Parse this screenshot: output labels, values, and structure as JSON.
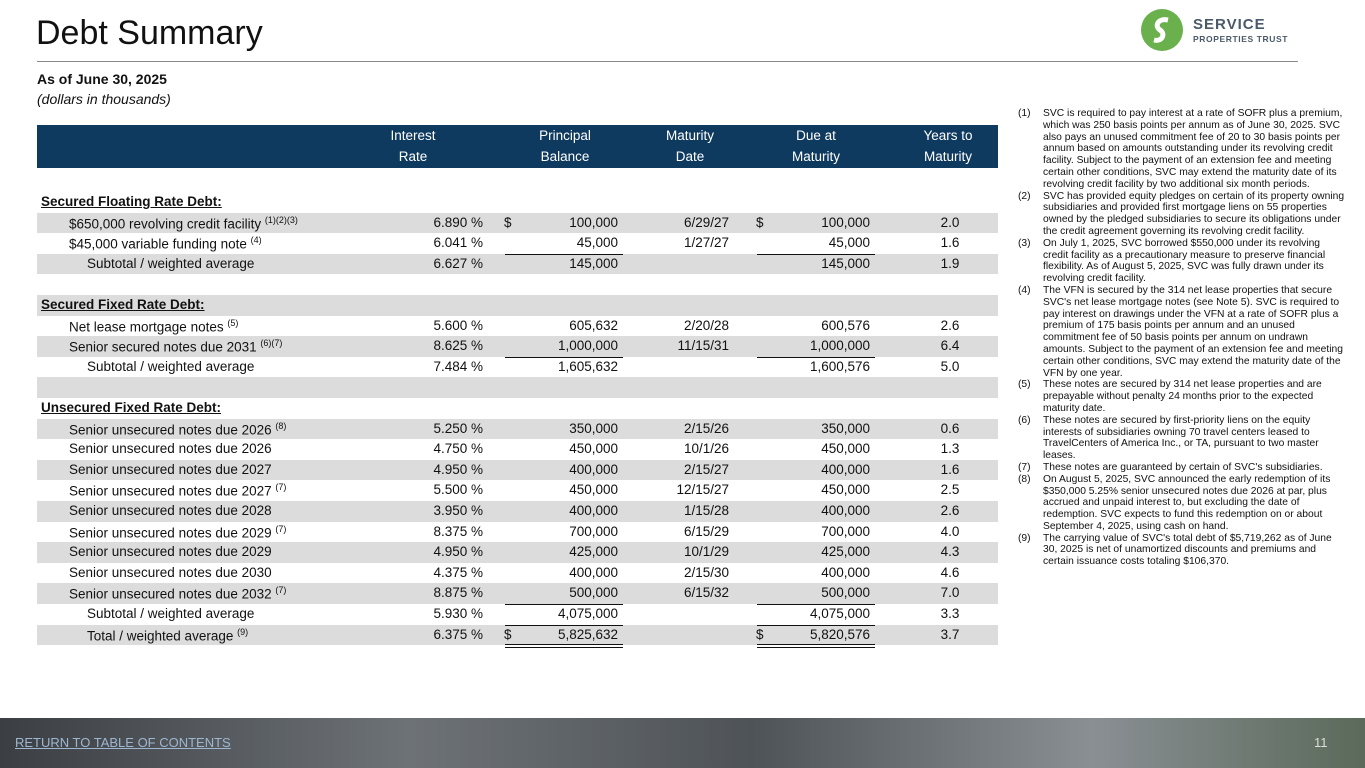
{
  "header": {
    "title": "Debt Summary",
    "subtitle": "As of June 30, 2025",
    "note": "(dollars in thousands)"
  },
  "logo": {
    "name": "SERVICE",
    "tagline": "PROPERTIES TRUST"
  },
  "table": {
    "columns": [
      {
        "line1": "Interest",
        "line2": "Rate"
      },
      {
        "line1": "Principal",
        "line2": "Balance"
      },
      {
        "line1": "Maturity",
        "line2": "Date"
      },
      {
        "line1": "Due at",
        "line2": "Maturity"
      },
      {
        "line1": "Years to",
        "line2": "Maturity"
      }
    ],
    "sections": [
      {
        "heading": "Secured Floating Rate Debt:",
        "rows": [
          {
            "label": "$650,000 revolving credit facility",
            "note": "(1)(2)(3)",
            "rate": "6.890 %",
            "currency": "$",
            "principal": "100,000",
            "date": "6/29/27",
            "due": "100,000",
            "years": "2.0"
          },
          {
            "label": "$45,000 variable funding note",
            "note": "(4)",
            "rate": "6.041 %",
            "principal": "45,000",
            "date": "1/27/27",
            "due": "45,000",
            "years": "1.6"
          }
        ],
        "subtotal": {
          "label": "Subtotal / weighted average",
          "rate": "6.627 %",
          "principal": "145,000",
          "due": "145,000",
          "years": "1.9"
        }
      },
      {
        "heading": "Secured Fixed Rate Debt:",
        "rows": [
          {
            "label": "Net lease mortgage notes",
            "note": "(5)",
            "rate": "5.600 %",
            "principal": "605,632",
            "date": "2/20/28",
            "due": "600,576",
            "years": "2.6"
          },
          {
            "label": "Senior secured notes due 2031",
            "note": "(6)(7)",
            "rate": "8.625 %",
            "principal": "1,000,000",
            "date": "11/15/31",
            "due": "1,000,000",
            "years": "6.4"
          }
        ],
        "subtotal": {
          "label": "Subtotal / weighted average",
          "rate": "7.484 %",
          "principal": "1,605,632",
          "due": "1,600,576",
          "years": "5.0"
        }
      },
      {
        "heading": "Unsecured Fixed Rate Debt:",
        "rows": [
          {
            "label": "Senior unsecured notes due 2026",
            "note": "(8)",
            "rate": "5.250 %",
            "principal": "350,000",
            "date": "2/15/26",
            "due": "350,000",
            "years": "0.6"
          },
          {
            "label": "Senior unsecured notes due 2026",
            "rate": "4.750 %",
            "principal": "450,000",
            "date": "10/1/26",
            "due": "450,000",
            "years": "1.3"
          },
          {
            "label": "Senior unsecured notes due 2027",
            "rate": "4.950 %",
            "principal": "400,000",
            "date": "2/15/27",
            "due": "400,000",
            "years": "1.6"
          },
          {
            "label": "Senior unsecured notes due 2027",
            "note": "(7)",
            "rate": "5.500 %",
            "principal": "450,000",
            "date": "12/15/27",
            "due": "450,000",
            "years": "2.5"
          },
          {
            "label": "Senior unsecured notes due 2028",
            "rate": "3.950 %",
            "principal": "400,000",
            "date": "1/15/28",
            "due": "400,000",
            "years": "2.6"
          },
          {
            "label": "Senior unsecured notes due 2029",
            "note": "(7)",
            "rate": "8.375 %",
            "principal": "700,000",
            "date": "6/15/29",
            "due": "700,000",
            "years": "4.0"
          },
          {
            "label": "Senior unsecured notes due 2029",
            "rate": "4.950 %",
            "principal": "425,000",
            "date": "10/1/29",
            "due": "425,000",
            "years": "4.3"
          },
          {
            "label": "Senior unsecured notes due 2030",
            "rate": "4.375 %",
            "principal": "400,000",
            "date": "2/15/30",
            "due": "400,000",
            "years": "4.6"
          },
          {
            "label": "Senior unsecured notes due 2032",
            "note": "(7)",
            "rate": "8.875 %",
            "principal": "500,000",
            "date": "6/15/32",
            "due": "500,000",
            "years": "7.0"
          }
        ],
        "subtotal": {
          "label": "Subtotal / weighted average",
          "rate": "5.930 %",
          "principal": "4,075,000",
          "due": "4,075,000",
          "years": "3.3"
        }
      }
    ],
    "total": {
      "label": "Total / weighted average",
      "note": "(9)",
      "rate": "6.375 %",
      "currency": "$",
      "principal": "5,825,632",
      "due": "5,820,576",
      "years": "3.7"
    }
  },
  "footnotes": [
    {
      "marker": "(1)",
      "text": "SVC is required to pay interest at a rate of SOFR plus a premium, which was 250 basis points per annum as of June 30, 2025. SVC also pays an unused commitment fee of 20 to 30 basis points per annum based on amounts outstanding under its revolving credit facility. Subject to the payment of an extension fee and meeting certain other conditions, SVC may extend the maturity date of its revolving credit facility by two additional six month periods."
    },
    {
      "marker": "(2)",
      "text": "SVC has provided equity pledges on certain of its property owning subsidiaries and provided first mortgage liens on 55 properties owned by the pledged subsidiaries to secure its obligations under the credit agreement governing its revolving credit facility."
    },
    {
      "marker": "(3)",
      "text": "On July 1, 2025, SVC borrowed $550,000 under its revolving credit facility as a precautionary measure to preserve financial flexibility. As of August 5, 2025, SVC was fully drawn under its revolving credit facility."
    },
    {
      "marker": "(4)",
      "text": "The VFN is secured by the 314 net lease properties that secure SVC's net lease mortgage notes (see Note 5). SVC is required to pay interest on drawings under the VFN at a rate of SOFR plus a premium of 175 basis points per annum and an unused commitment fee of 50 basis points per annum on undrawn amounts. Subject to the payment of an extension fee and meeting certain other conditions, SVC may extend the maturity date of the VFN by one year."
    },
    {
      "marker": "(5)",
      "text": "These notes are secured by 314 net lease properties and are prepayable without penalty 24 months prior to the expected maturity date."
    },
    {
      "marker": "(6)",
      "text": "These notes are secured by first-priority liens on the equity interests of subsidiaries owning 70 travel centers leased to TravelCenters of America Inc., or TA, pursuant to two master leases."
    },
    {
      "marker": "(7)",
      "text": "These notes are guaranteed by certain of SVC's subsidiaries."
    },
    {
      "marker": "(8)",
      "text": "On August 5, 2025, SVC announced the early redemption of its $350,000 5.25% senior unsecured notes due 2026 at par, plus accrued and unpaid interest to, but excluding the date of redemption. SVC expects to fund this redemption on or about September 4, 2025, using cash on hand."
    },
    {
      "marker": "(9)",
      "text": "The carrying value of SVC's total debt of $5,719,262 as of June 30, 2025 is net of unamortized discounts and premiums and certain issuance costs totaling $106,370."
    }
  ],
  "footer": {
    "link": "RETURN TO TABLE OF CONTENTS",
    "page": "11"
  }
}
